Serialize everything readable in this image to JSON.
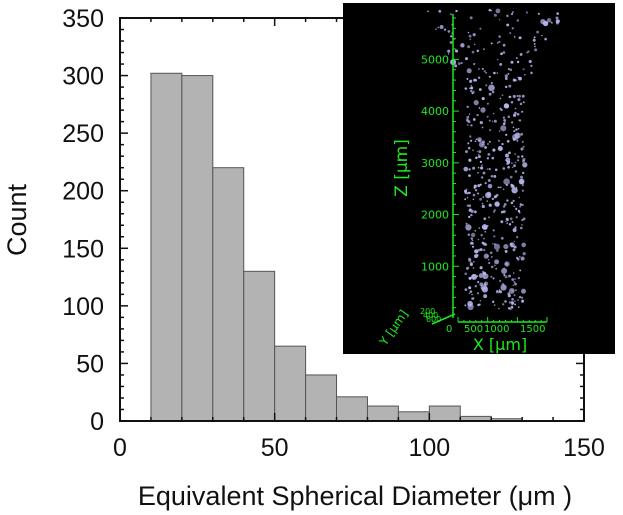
{
  "chart_data": {
    "type": "bar",
    "title": "",
    "xlabel": "Equivalent Spherical Diameter (μm )",
    "ylabel": "Count",
    "xlim": [
      0,
      150
    ],
    "ylim": [
      0,
      350
    ],
    "xticks": [
      0,
      50,
      100,
      150
    ],
    "yticks": [
      0,
      50,
      100,
      150,
      200,
      250,
      300,
      350
    ],
    "bin_width": 10,
    "bins": [
      {
        "start": 10,
        "end": 20,
        "count": 302
      },
      {
        "start": 20,
        "end": 30,
        "count": 300
      },
      {
        "start": 30,
        "end": 40,
        "count": 220
      },
      {
        "start": 40,
        "end": 50,
        "count": 130
      },
      {
        "start": 50,
        "end": 60,
        "count": 65
      },
      {
        "start": 60,
        "end": 70,
        "count": 40
      },
      {
        "start": 70,
        "end": 80,
        "count": 21
      },
      {
        "start": 80,
        "end": 90,
        "count": 13
      },
      {
        "start": 90,
        "end": 100,
        "count": 8
      },
      {
        "start": 100,
        "end": 110,
        "count": 13
      },
      {
        "start": 110,
        "end": 120,
        "count": 4
      },
      {
        "start": 120,
        "end": 130,
        "count": 2
      }
    ],
    "bar_color": "#b3b3b3",
    "grid": false,
    "legend": "none"
  },
  "inset": {
    "background": "#000000",
    "axis_color": "#1ee81e",
    "particle_color": "#b6b6ee",
    "z_label": "Z [μm]",
    "x_label": "X [μm]",
    "y_label": "Y [μm]",
    "z_ticks": [
      1000,
      2000,
      3000,
      4000,
      5000
    ],
    "x_tick_text": [
      "0",
      "500",
      "1000",
      "1500"
    ],
    "y_tick_text": [
      "200",
      "400",
      "600"
    ]
  }
}
